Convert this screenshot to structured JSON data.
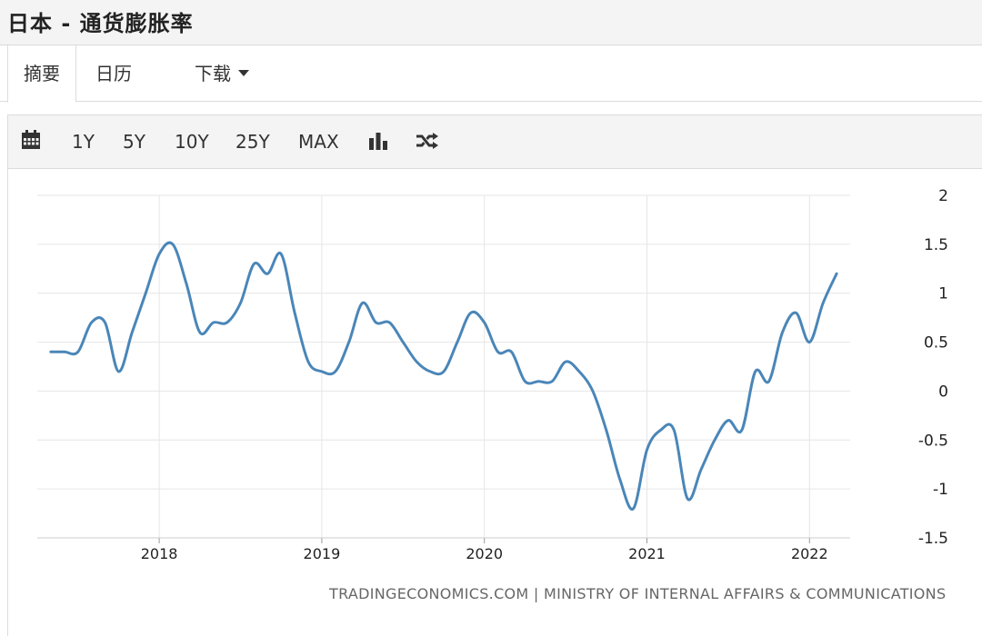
{
  "header": {
    "title": "日本 - 通货膨胀率"
  },
  "tabs": [
    {
      "label": "摘要"
    },
    {
      "label": "日历"
    },
    {
      "label": "下载"
    }
  ],
  "toolbar": {
    "calendar_icon": "calendar-icon",
    "ranges": [
      "1Y",
      "5Y",
      "10Y",
      "25Y",
      "MAX"
    ],
    "bar_chart_icon": "bar-chart-icon",
    "shuffle_icon": "shuffle-icon"
  },
  "footer": {
    "credit": "TRADINGECONOMICS.COM  |  MINISTRY OF INTERNAL AFFAIRS & COMMUNICATIONS"
  },
  "chart_data": {
    "type": "line",
    "line_color": "#4a86b8",
    "grid": true,
    "x_ticks": [
      "2018",
      "2019",
      "2020",
      "2021",
      "2022"
    ],
    "y_ticks": [
      "2",
      "1.5",
      "1",
      "0.5",
      "0",
      "-0.5",
      "-1",
      "-1.5"
    ],
    "ylim": [
      -1.5,
      2
    ],
    "xlim": [
      "2017-04",
      "2022-04"
    ],
    "series": [
      {
        "x": [
          "2017-05",
          "2017-06",
          "2017-07",
          "2017-08",
          "2017-09",
          "2017-10",
          "2017-11",
          "2017-12",
          "2018-01",
          "2018-02",
          "2018-03",
          "2018-04",
          "2018-05",
          "2018-06",
          "2018-07",
          "2018-08",
          "2018-09",
          "2018-10",
          "2018-11",
          "2018-12",
          "2019-01",
          "2019-02",
          "2019-03",
          "2019-04",
          "2019-05",
          "2019-06",
          "2019-07",
          "2019-08",
          "2019-09",
          "2019-10",
          "2019-11",
          "2019-12",
          "2020-01",
          "2020-02",
          "2020-03",
          "2020-04",
          "2020-05",
          "2020-06",
          "2020-07",
          "2020-08",
          "2020-09",
          "2020-10",
          "2020-11",
          "2020-12",
          "2021-01",
          "2021-02",
          "2021-03",
          "2021-04",
          "2021-05",
          "2021-06",
          "2021-07",
          "2021-08",
          "2021-09",
          "2021-10",
          "2021-11",
          "2021-12",
          "2022-01",
          "2022-02",
          "2022-03"
        ],
        "values": [
          0.4,
          0.4,
          0.4,
          0.7,
          0.7,
          0.2,
          0.6,
          1.0,
          1.4,
          1.5,
          1.1,
          0.6,
          0.7,
          0.7,
          0.9,
          1.3,
          1.2,
          1.4,
          0.8,
          0.3,
          0.2,
          0.2,
          0.5,
          0.9,
          0.7,
          0.7,
          0.5,
          0.3,
          0.2,
          0.2,
          0.5,
          0.8,
          0.7,
          0.4,
          0.4,
          0.1,
          0.1,
          0.1,
          0.3,
          0.2,
          0.0,
          -0.4,
          -0.9,
          -1.2,
          -0.6,
          -0.4,
          -0.4,
          -1.1,
          -0.8,
          -0.5,
          -0.3,
          -0.4,
          0.2,
          0.1,
          0.6,
          0.8,
          0.5,
          0.9,
          1.2
        ]
      }
    ]
  }
}
